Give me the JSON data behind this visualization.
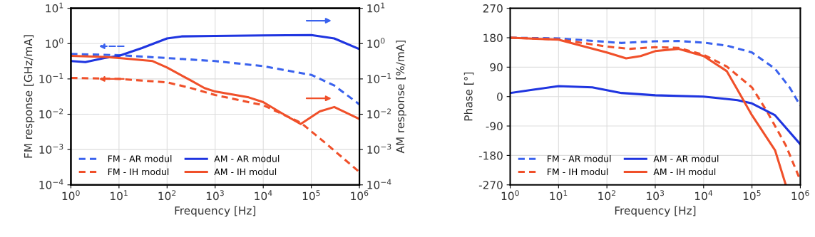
{
  "chart_data": [
    {
      "type": "line",
      "xlabel": "Frequency [Hz]",
      "ylabel": "FM response [GHz/mA]",
      "y2label": "AM response [%/mA]",
      "log": "xy",
      "grid": true,
      "legend": "bottom left",
      "xlim": [
        1,
        1000000
      ],
      "xticks": [
        {
          "value": 1,
          "label": "10$^{0}$"
        },
        {
          "value": 10,
          "label": "10$^{1}$"
        },
        {
          "value": 100,
          "label": "10$^{2}$"
        },
        {
          "value": 1000,
          "label": "10$^{3}$"
        },
        {
          "value": 10000,
          "label": "10$^{4}$"
        },
        {
          "value": 100000,
          "label": "10$^{5}$"
        },
        {
          "value": 1000000,
          "label": "10$^{6}$"
        }
      ],
      "ylim": [
        0.0001,
        10
      ],
      "yticks": [
        {
          "value": 0.0001,
          "label": "10$^{−4}$"
        },
        {
          "value": 0.001,
          "label": "10$^{−3}$"
        },
        {
          "value": 0.01,
          "label": "10$^{−2}$"
        },
        {
          "value": 0.1,
          "label": "10$^{−1}$"
        },
        {
          "value": 1,
          "label": "10$^{0}$"
        },
        {
          "value": 10,
          "label": "10$^{1}$"
        }
      ],
      "series": [
        {
          "name": "FM - AR modul",
          "color": "#3a62ee",
          "line_style": "dashed",
          "x": [
            1,
            10,
            100,
            1000,
            10000,
            100000,
            300000,
            1000000
          ],
          "values": [
            0.51,
            0.47,
            0.39,
            0.32,
            0.23,
            0.13,
            0.065,
            0.019
          ]
        },
        {
          "name": "FM - IH modul",
          "color": "#f0502a",
          "line_style": "dashed",
          "x": [
            1,
            10,
            100,
            300,
            1000,
            10000,
            60000,
            200000,
            1000000
          ],
          "values": [
            0.107,
            0.1,
            0.08,
            0.056,
            0.035,
            0.018,
            0.0058,
            0.0015,
            0.00023
          ]
        },
        {
          "name": "AM - AR modul",
          "color": "#1f35e0",
          "line_style": "solid",
          "x": [
            1,
            2,
            5,
            10,
            30,
            100,
            200,
            1000,
            10000,
            100000,
            300000,
            1000000
          ],
          "values": [
            0.32,
            0.3,
            0.39,
            0.45,
            0.75,
            1.4,
            1.6,
            1.65,
            1.7,
            1.75,
            1.4,
            0.7
          ]
        },
        {
          "name": "AM - IH modul",
          "color": "#f0502a",
          "line_style": "solid",
          "x": [
            1,
            5,
            10,
            50,
            100,
            300,
            600,
            1000,
            5000,
            10000,
            30000,
            60000,
            150000,
            300000,
            1000000
          ],
          "values": [
            0.45,
            0.42,
            0.39,
            0.32,
            0.21,
            0.093,
            0.055,
            0.044,
            0.03,
            0.022,
            0.009,
            0.0053,
            0.012,
            0.016,
            0.0073
          ]
        }
      ]
    },
    {
      "type": "line",
      "xlabel": "Frequency [Hz]",
      "ylabel": "Phase [°]",
      "log": "x",
      "grid": true,
      "legend": "bottom left",
      "xlim": [
        1,
        1000000
      ],
      "xticks": [
        {
          "value": 1,
          "label": "10$^{0}$"
        },
        {
          "value": 10,
          "label": "10$^{1}$"
        },
        {
          "value": 100,
          "label": "10$^{2}$"
        },
        {
          "value": 1000,
          "label": "10$^{3}$"
        },
        {
          "value": 10000,
          "label": "10$^{4}$"
        },
        {
          "value": 100000,
          "label": "10$^{5}$"
        },
        {
          "value": 1000000,
          "label": "10$^{6}$"
        }
      ],
      "ylim": [
        -270,
        270
      ],
      "yticks": [
        {
          "value": -270,
          "label": "-270"
        },
        {
          "value": -180,
          "label": "-180"
        },
        {
          "value": -90,
          "label": "-90"
        },
        0,
        90,
        180,
        270
      ],
      "series": [
        {
          "name": "FM - AR modul",
          "color": "#3a62ee",
          "line_style": "dashed",
          "x": [
            1,
            10,
            200,
            1000,
            3000,
            10000,
            30000,
            100000,
            300000,
            600000,
            1000000
          ],
          "values": [
            180,
            178,
            164,
            169,
            170,
            165,
            156,
            135,
            85,
            28,
            -28
          ]
        },
        {
          "name": "FM - IH modul",
          "color": "#f0502a",
          "line_style": "dashed",
          "x": [
            1,
            10,
            100,
            300,
            1000,
            3000,
            10000,
            30000,
            100000,
            200000,
            500000,
            1000000
          ],
          "values": [
            180,
            175,
            153,
            146,
            151,
            149,
            128,
            92,
            28,
            -43,
            -149,
            -256
          ]
        },
        {
          "name": "AM - AR modul",
          "color": "#1f35e0",
          "line_style": "solid",
          "x": [
            1,
            3,
            10,
            50,
            200,
            1000,
            10000,
            50000,
            100000,
            300000,
            1000000
          ],
          "values": [
            11,
            21,
            32,
            28,
            11,
            4,
            0,
            -11,
            -21,
            -57,
            -146
          ]
        },
        {
          "name": "AM - IH modul",
          "color": "#f0502a",
          "line_style": "solid",
          "x": [
            1,
            10,
            100,
            250,
            500,
            1000,
            3000,
            10000,
            30000,
            50000,
            100000,
            300000,
            500000
          ],
          "values": [
            180,
            174,
            135,
            117,
            124,
            139,
            146,
            124,
            78,
            21,
            -57,
            -164,
            -270
          ]
        }
      ]
    }
  ]
}
